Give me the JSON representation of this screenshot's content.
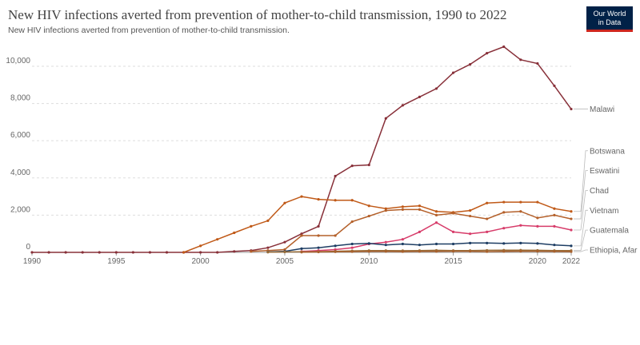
{
  "chart_data": {
    "type": "line",
    "title": "New HIV infections averted from prevention of mother-to-child transmission, 1990 to 2022",
    "subtitle": "New HIV infections averted from prevention of mother-to-child transmission.",
    "logo": [
      "Our World",
      "in Data"
    ],
    "x": [
      1990,
      1991,
      1992,
      1993,
      1994,
      1995,
      1996,
      1997,
      1998,
      1999,
      2000,
      2001,
      2002,
      2003,
      2004,
      2005,
      2006,
      2007,
      2008,
      2009,
      2010,
      2011,
      2012,
      2013,
      2014,
      2015,
      2016,
      2017,
      2018,
      2019,
      2020,
      2021,
      2022
    ],
    "xlim": [
      1990,
      2022
    ],
    "xticks": [
      1990,
      1995,
      2000,
      2005,
      2010,
      2015,
      2020,
      2022
    ],
    "ylim": [
      0,
      11500
    ],
    "yticks": [
      0,
      {
        "value": 2000,
        "label": "2,000"
      },
      {
        "value": 4000,
        "label": "4,000"
      },
      {
        "value": 6000,
        "label": "6,000"
      },
      {
        "value": 8000,
        "label": "8,000"
      },
      {
        "value": 10000,
        "label": "10,000"
      }
    ],
    "grid": true,
    "series": [
      {
        "name": "Malawi",
        "color": "#883039",
        "values": [
          0,
          0,
          0,
          0,
          0,
          0,
          0,
          0,
          0,
          0,
          0,
          0,
          50,
          100,
          250,
          550,
          1000,
          1400,
          4100,
          4650,
          4700,
          7200,
          7900,
          8350,
          8800,
          9650,
          10100,
          10700,
          11050,
          10350,
          10150,
          8950,
          7700
        ]
      },
      {
        "name": "Botswana",
        "color": "#c05917",
        "values": [
          null,
          null,
          null,
          null,
          null,
          null,
          null,
          null,
          null,
          0,
          350,
          700,
          1050,
          1400,
          1700,
          2650,
          3000,
          2850,
          2800,
          2800,
          2500,
          2350,
          2450,
          2500,
          2200,
          2150,
          2250,
          2650,
          2700,
          2700,
          2700,
          2350,
          2200
        ]
      },
      {
        "name": "Eswatini",
        "color": "#b4602a",
        "values": [
          null,
          null,
          null,
          null,
          null,
          null,
          null,
          null,
          null,
          null,
          null,
          null,
          null,
          50,
          100,
          150,
          900,
          900,
          900,
          1650,
          1950,
          2250,
          2300,
          2300,
          2000,
          2100,
          1950,
          1800,
          2150,
          2200,
          1850,
          2000,
          1800
        ]
      },
      {
        "name": "Chad",
        "color": "#d73c6a",
        "values": [
          null,
          null,
          null,
          null,
          null,
          null,
          null,
          null,
          null,
          null,
          null,
          null,
          null,
          null,
          null,
          null,
          50,
          100,
          150,
          250,
          450,
          550,
          700,
          1100,
          1600,
          1100,
          1000,
          1100,
          1300,
          1450,
          1400,
          1400,
          1200
        ]
      },
      {
        "name": "Vietnam",
        "color": "#1d3d63",
        "values": [
          null,
          null,
          null,
          null,
          null,
          null,
          null,
          null,
          null,
          null,
          null,
          null,
          null,
          null,
          20,
          50,
          200,
          250,
          350,
          450,
          480,
          400,
          450,
          400,
          450,
          450,
          500,
          500,
          480,
          500,
          480,
          400,
          350
        ]
      },
      {
        "name": "Guatemala",
        "color": "#996d39",
        "values": [
          null,
          null,
          null,
          null,
          null,
          null,
          null,
          null,
          null,
          null,
          null,
          null,
          null,
          null,
          10,
          20,
          30,
          40,
          60,
          80,
          100,
          100,
          90,
          100,
          110,
          100,
          100,
          110,
          120,
          120,
          110,
          100,
          100
        ]
      },
      {
        "name": "Ethiopia, Afar",
        "color": "#a8612d",
        "values": [
          null,
          null,
          null,
          null,
          null,
          null,
          null,
          null,
          null,
          null,
          null,
          null,
          null,
          null,
          null,
          null,
          10,
          20,
          30,
          40,
          50,
          50,
          40,
          50,
          50,
          60,
          60,
          40,
          50,
          60,
          60,
          50,
          40
        ]
      }
    ]
  }
}
